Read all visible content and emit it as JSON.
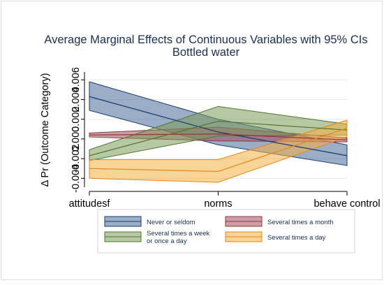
{
  "chart_data": {
    "type": "area",
    "title": "Average Marginal Effects of Continuous Variables with 95% CIs",
    "subtitle": "Bottled water",
    "xlabel": "",
    "ylabel": "Δ  Pr (Outcome Category)",
    "categories": [
      "attitudesf",
      "norms",
      "behave control"
    ],
    "yticks": [
      -0.004,
      -0.002,
      0.0,
      0.002,
      0.004,
      0.006
    ],
    "ytick_labels": [
      "-0.004",
      "-0.002",
      "0.000",
      "0.002",
      "0.004",
      "0.006"
    ],
    "ylim": [
      -0.0049,
      0.0068
    ],
    "grid": true,
    "legend_position": "bottom",
    "series": [
      {
        "name": "Never or seldom",
        "estimate": [
          0.0043,
          0.0007,
          -0.0017
        ],
        "lower": [
          0.0029,
          -0.0006,
          -0.0027
        ],
        "upper": [
          0.0058,
          0.002,
          -0.0006
        ],
        "fill": "#4a6a9a",
        "line": "#1a3a6c"
      },
      {
        "name": "Several times a month",
        "estimate": [
          0.0004,
          0.0005,
          -0.0001
        ],
        "lower": [
          0.0002,
          -0.0002,
          -0.0003
        ],
        "upper": [
          0.0006,
          0.0012,
          0.0001
        ],
        "fill": "#a05060",
        "line": "#90353b"
      },
      {
        "name": "Several times a week\nor once a day",
        "estimate": [
          -0.0017,
          0.0018,
          0.0009
        ],
        "lower": [
          -0.0022,
          0.0003,
          0.0004
        ],
        "upper": [
          -0.0011,
          0.0033,
          0.0015
        ],
        "fill": "#7a9a5a",
        "line": "#55752f"
      },
      {
        "name": "Several times a day",
        "estimate": [
          -0.003,
          -0.0033,
          0.0011
        ],
        "lower": [
          -0.004,
          -0.0044,
          0.0002
        ],
        "upper": [
          -0.0021,
          -0.0021,
          0.0019
        ],
        "fill": "#f2b042",
        "line": "#e8861a"
      }
    ],
    "legend_order": [
      0,
      1,
      2,
      3
    ]
  }
}
